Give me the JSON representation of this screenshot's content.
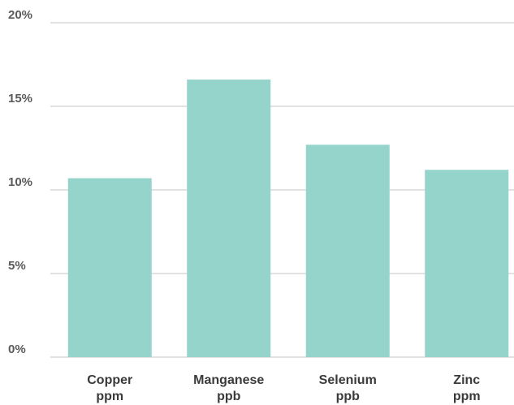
{
  "chart_data": {
    "type": "bar",
    "categories": [
      [
        "Copper",
        "ppm"
      ],
      [
        "Manganese",
        "ppb"
      ],
      [
        "Selenium",
        "ppb"
      ],
      [
        "Zinc",
        "ppm"
      ]
    ],
    "values": [
      10.7,
      16.6,
      12.7,
      11.2
    ],
    "ylim": [
      0,
      20
    ],
    "yticks": [
      "0%",
      "5%",
      "10%",
      "15%",
      "20%"
    ],
    "ytick_values": [
      0,
      5,
      10,
      15,
      20
    ],
    "grid": true,
    "bar_color": "#95d4cb",
    "grid_color": "#d9d9d9",
    "title": "",
    "xlabel": "",
    "ylabel": ""
  }
}
